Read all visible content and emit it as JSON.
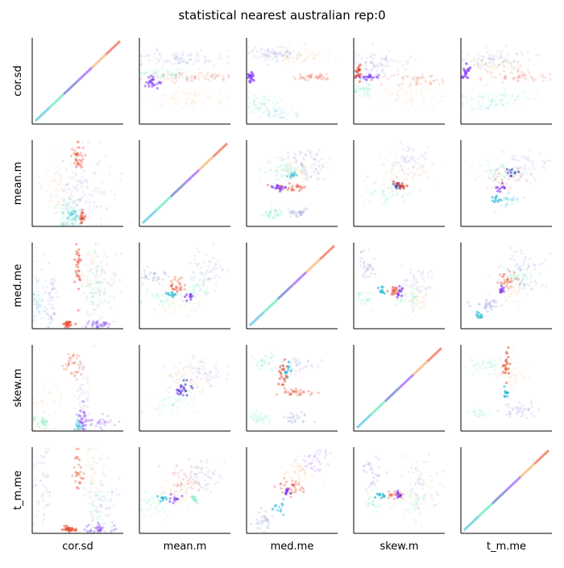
{
  "chart_data": {
    "type": "scatter",
    "title": "statistical nearest australian rep:0",
    "variables": [
      "cor.sd",
      "mean.m",
      "med.me",
      "skew.m",
      "t_m.me"
    ],
    "layout": "scatter-matrix 5x5",
    "axes_spines": "left and bottom only",
    "ticks": "none",
    "point_alpha": "low, heavily overplotted",
    "colormap": "rainbow (blue, purple, cyan, green, orange, red)",
    "series_colors": [
      "#3b4cc0",
      "#7b2ff7",
      "#1fb5d6",
      "#2ee59a",
      "#f59b42",
      "#e83a1c"
    ]
  }
}
